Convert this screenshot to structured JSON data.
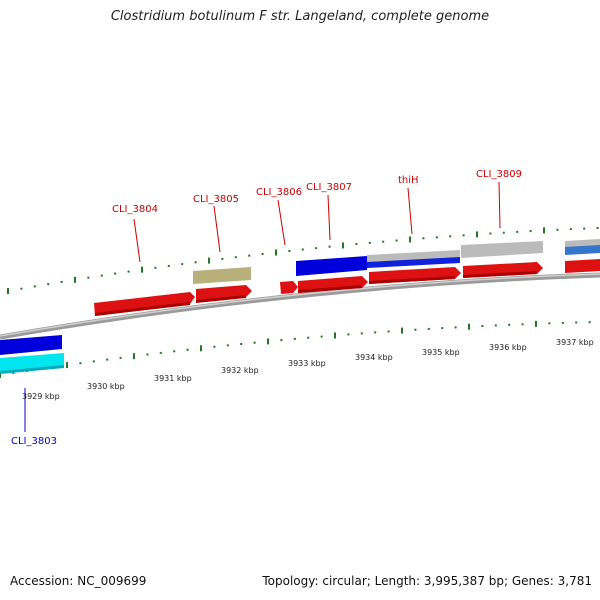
{
  "title": "Clostridium botulinum F str. Langeland, complete genome",
  "footer": {
    "accession": "Accession: NC_009699",
    "summary": "Topology: circular; Length: 3,995,387 bp; Genes: 3,781"
  },
  "tick_labels": [
    "3929 kbp",
    "3930 kbp",
    "3931 kbp",
    "3932 kbp",
    "3933 kbp",
    "3934 kbp",
    "3935 kbp",
    "3936 kbp",
    "3937 kbp"
  ],
  "gene_labels": [
    {
      "name": "CLI_3803",
      "color": "#0000cc"
    },
    {
      "name": "CLI_3804",
      "color": "#cc0000"
    },
    {
      "name": "CLI_3805",
      "color": "#cc0000"
    },
    {
      "name": "CLI_3806",
      "color": "#cc0000"
    },
    {
      "name": "CLI_3807",
      "color": "#cc0000"
    },
    {
      "name": "thiH",
      "color": "#cc0000"
    },
    {
      "name": "CLI_3809",
      "color": "#cc0000"
    }
  ],
  "colors": {
    "backbone": "#8a8a8a",
    "cds_forward": "#dd1111",
    "cds_reverse": "#0000dd",
    "cds_other": "#00e5ee",
    "feature_gray": "#bbbbbb",
    "feature_olive": "#b8b07a",
    "tick": "#227722"
  }
}
